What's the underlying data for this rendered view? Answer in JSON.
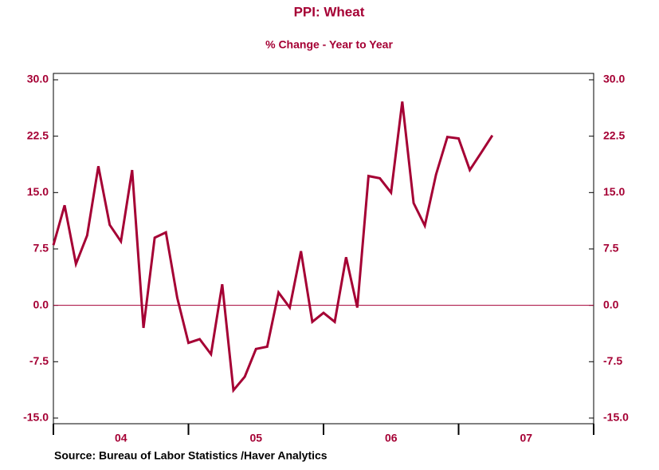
{
  "chart_data": {
    "type": "line",
    "title": "PPI: Wheat",
    "subtitle": "% Change - Year to Year",
    "source": "Source:  Bureau of Labor Statistics /Haver Analytics",
    "x": [
      2004.0,
      2004.083,
      2004.167,
      2004.25,
      2004.333,
      2004.417,
      2004.5,
      2004.583,
      2004.667,
      2004.75,
      2004.833,
      2004.917,
      2005.0,
      2005.083,
      2005.167,
      2005.25,
      2005.333,
      2005.417,
      2005.5,
      2005.583,
      2005.667,
      2005.75,
      2005.833,
      2005.917,
      2006.0,
      2006.083,
      2006.167,
      2006.25,
      2006.333,
      2006.417,
      2006.5,
      2006.583,
      2006.667,
      2006.75,
      2006.833,
      2006.917,
      2007.0,
      2007.083,
      2007.167,
      2007.25
    ],
    "series": [
      {
        "name": "PPI: Wheat",
        "color": "#a50034",
        "values": [
          8.0,
          13.3,
          5.5,
          9.3,
          18.5,
          10.7,
          8.5,
          18.0,
          -3.0,
          9.0,
          9.7,
          1.0,
          -5.0,
          -4.5,
          -6.5,
          2.8,
          -11.3,
          -9.5,
          -5.8,
          -5.5,
          1.7,
          -0.3,
          7.2,
          -2.2,
          -1.0,
          -2.2,
          6.4,
          -0.3,
          17.2,
          16.9,
          15.0,
          27.1,
          13.6,
          10.6,
          17.4,
          22.4,
          22.2,
          18.0,
          20.3,
          22.6
        ]
      }
    ],
    "xlim": [
      2004,
      2008
    ],
    "xticks": [
      2004,
      2005,
      2006,
      2007,
      2008
    ],
    "xtick_labels": [
      {
        "value": 2004.5,
        "label": "04"
      },
      {
        "value": 2005.5,
        "label": "05"
      },
      {
        "value": 2006.5,
        "label": "06"
      },
      {
        "value": 2007.5,
        "label": "07"
      }
    ],
    "ylim": [
      -15.75,
      30.85
    ],
    "yticks": [
      {
        "value": 30,
        "label": "30.0"
      },
      {
        "value": 22.5,
        "label": "22.5"
      },
      {
        "value": 15,
        "label": "15.0"
      },
      {
        "value": 7.5,
        "label": "7.5"
      },
      {
        "value": 0,
        "label": "0.0"
      },
      {
        "value": -7.5,
        "label": "-7.5"
      },
      {
        "value": -15,
        "label": "-15.0"
      }
    ],
    "zero_line": true
  }
}
